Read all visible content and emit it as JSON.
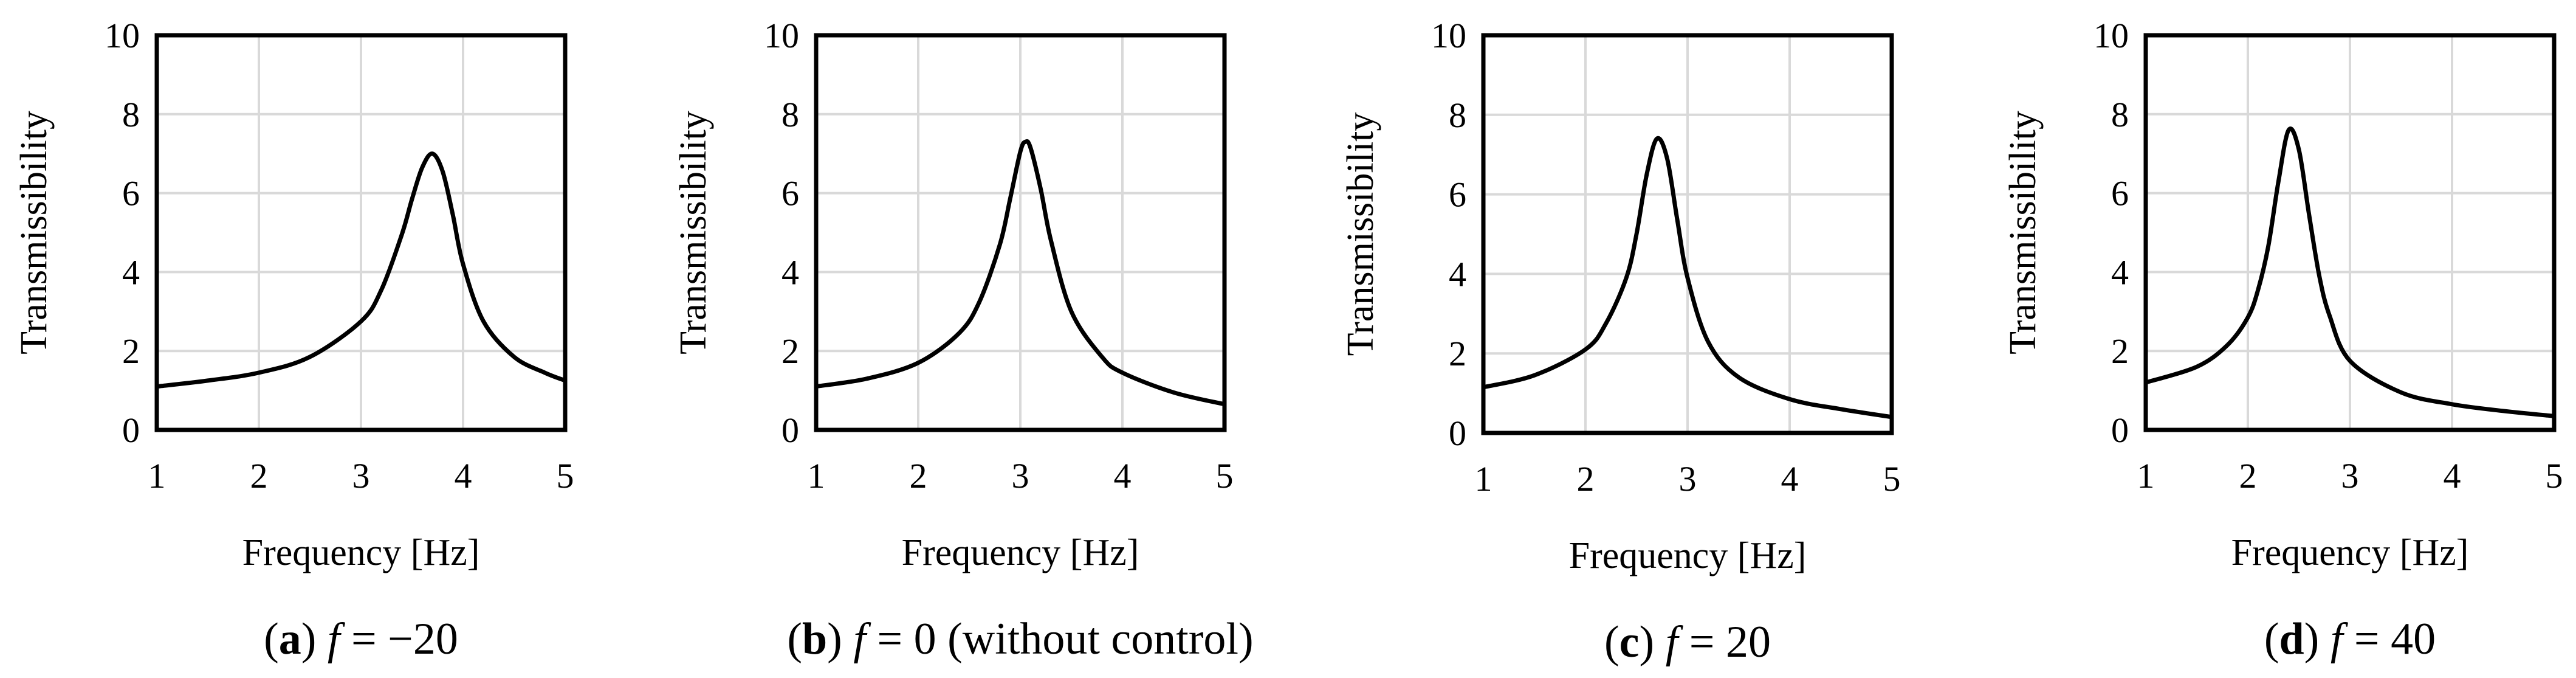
{
  "chart_data": [
    {
      "type": "line",
      "caption": {
        "letter": "a",
        "variable": "f",
        "text": " = −20"
      },
      "xlabel": "Frequency [Hz]",
      "ylabel": "Transmissibility",
      "xlim": [
        1,
        5
      ],
      "ylim": [
        0,
        10
      ],
      "x_ticks": [
        "1",
        "2",
        "3",
        "4",
        "5"
      ],
      "y_ticks": [
        "0",
        "2",
        "4",
        "6",
        "8",
        "10"
      ],
      "grid": true,
      "series": [
        {
          "name": "f = −20",
          "peak_frequency": 3.7,
          "peak_value": 7.0,
          "end_value": 1.25,
          "x": [
            1.0,
            1.5,
            2.0,
            2.5,
            3.0,
            3.2,
            3.4,
            3.5,
            3.6,
            3.7,
            3.8,
            3.9,
            4.0,
            4.2,
            4.5,
            4.8,
            5.0
          ],
          "values": [
            1.1,
            1.25,
            1.45,
            1.85,
            2.75,
            3.55,
            4.95,
            5.85,
            6.65,
            7.0,
            6.55,
            5.45,
            4.2,
            2.75,
            1.85,
            1.45,
            1.25
          ]
        }
      ]
    },
    {
      "type": "line",
      "caption": {
        "letter": "b",
        "variable": "f",
        "text": " = 0 (without control)"
      },
      "xlabel": "Frequency [Hz]",
      "ylabel": "Transmissibility",
      "xlim": [
        1,
        5
      ],
      "ylim": [
        0,
        10
      ],
      "x_ticks": [
        "1",
        "2",
        "3",
        "4",
        "5"
      ],
      "y_ticks": [
        "0",
        "2",
        "4",
        "6",
        "8",
        "10"
      ],
      "grid": true,
      "series": [
        {
          "name": "f = 0",
          "peak_frequency": 3.05,
          "peak_value": 7.3,
          "end_value": 0.65,
          "x": [
            1.0,
            1.5,
            2.0,
            2.4,
            2.6,
            2.8,
            2.9,
            3.0,
            3.05,
            3.1,
            3.2,
            3.3,
            3.5,
            3.8,
            4.0,
            4.5,
            5.0
          ],
          "values": [
            1.1,
            1.3,
            1.7,
            2.45,
            3.25,
            4.7,
            5.85,
            7.05,
            7.3,
            7.15,
            6.1,
            4.8,
            3.0,
            1.85,
            1.45,
            0.95,
            0.65
          ]
        }
      ]
    },
    {
      "type": "line",
      "caption": {
        "letter": "c",
        "variable": "f",
        "text": " = 20"
      },
      "xlabel": "Frequency [Hz]",
      "ylabel": "Transmissibility",
      "xlim": [
        1,
        5
      ],
      "ylim": [
        0,
        10
      ],
      "x_ticks": [
        "1",
        "2",
        "3",
        "4",
        "5"
      ],
      "y_ticks": [
        "0",
        "2",
        "4",
        "6",
        "8",
        "10"
      ],
      "grid": true,
      "series": [
        {
          "name": "f = 20",
          "peak_frequency": 2.7,
          "peak_value": 7.4,
          "end_value": 0.4,
          "x": [
            1.0,
            1.5,
            2.0,
            2.2,
            2.4,
            2.5,
            2.6,
            2.7,
            2.8,
            2.9,
            3.0,
            3.2,
            3.5,
            4.0,
            4.5,
            5.0
          ],
          "values": [
            1.15,
            1.45,
            2.1,
            2.75,
            3.9,
            5.0,
            6.5,
            7.4,
            6.9,
            5.35,
            3.9,
            2.3,
            1.4,
            0.85,
            0.6,
            0.4
          ]
        }
      ]
    },
    {
      "type": "line",
      "caption": {
        "letter": "d",
        "variable": "f",
        "text": " = 40"
      },
      "xlabel": "Frequency [Hz]",
      "ylabel": "Transmissibility",
      "xlim": [
        1,
        5
      ],
      "ylim": [
        0,
        10
      ],
      "x_ticks": [
        "1",
        "2",
        "3",
        "4",
        "5"
      ],
      "y_ticks": [
        "0",
        "2",
        "4",
        "6",
        "8",
        "10"
      ],
      "grid": true,
      "series": [
        {
          "name": "f = 40",
          "peak_frequency": 2.4,
          "peak_value": 7.6,
          "end_value": 0.35,
          "x": [
            1.0,
            1.5,
            1.8,
            2.0,
            2.1,
            2.2,
            2.3,
            2.4,
            2.5,
            2.6,
            2.7,
            2.8,
            3.0,
            3.5,
            4.0,
            4.5,
            5.0
          ],
          "values": [
            1.2,
            1.6,
            2.15,
            2.85,
            3.55,
            4.65,
            6.3,
            7.6,
            7.1,
            5.45,
            3.9,
            2.9,
            1.75,
            0.95,
            0.65,
            0.48,
            0.35
          ]
        }
      ]
    }
  ]
}
